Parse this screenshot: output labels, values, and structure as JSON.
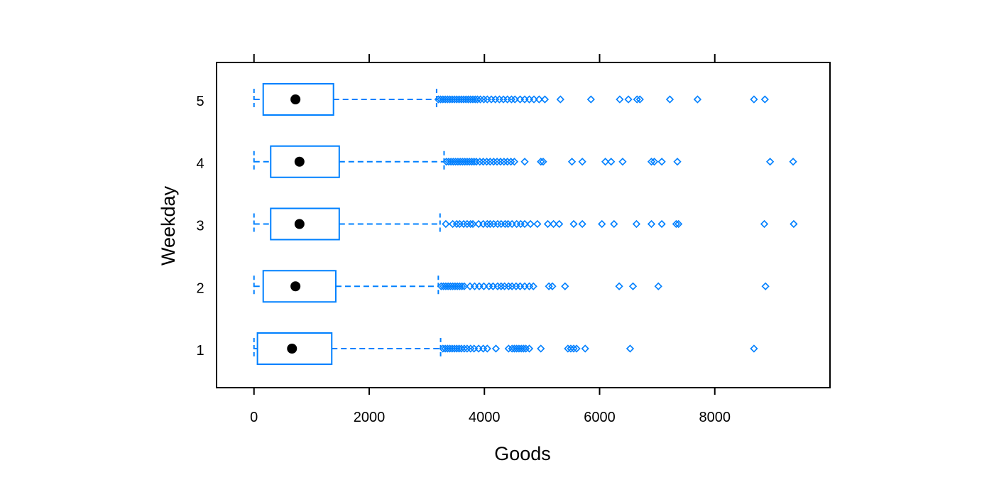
{
  "chart_data": {
    "type": "boxplot",
    "orientation": "horizontal",
    "xlabel": "Goods",
    "ylabel": "Weekday",
    "xlim": [
      -650,
      10000
    ],
    "x_ticks": [
      0,
      2000,
      4000,
      6000,
      8000
    ],
    "grid": false,
    "legend": "none",
    "colors": {
      "box": "#0080FF",
      "median": "#000000",
      "frame": "#000000"
    },
    "series": [
      {
        "category": "1",
        "whisker_low": 0,
        "q1": 60,
        "median": 660,
        "q3": 1350,
        "whisker_high": 3240,
        "outliers": [
          3280,
          3320,
          3360,
          3400,
          3440,
          3480,
          3520,
          3560,
          3600,
          3650,
          3700,
          3760,
          3820,
          3900,
          3980,
          4050,
          4200,
          4420,
          4480,
          4520,
          4560,
          4600,
          4640,
          4680,
          4720,
          4780,
          4980,
          5450,
          5500,
          5550,
          5600,
          5750,
          6530,
          8680
        ]
      },
      {
        "category": "2",
        "whisker_low": 0,
        "q1": 160,
        "median": 720,
        "q3": 1420,
        "whisker_high": 3200,
        "outliers": [
          3250,
          3290,
          3330,
          3370,
          3410,
          3450,
          3490,
          3530,
          3570,
          3610,
          3650,
          3750,
          3830,
          3910,
          3990,
          4080,
          4150,
          4230,
          4290,
          4350,
          4420,
          4480,
          4550,
          4620,
          4700,
          4780,
          4850,
          5120,
          5180,
          5400,
          6340,
          6580,
          7020,
          8880
        ]
      },
      {
        "category": "3",
        "whisker_low": 0,
        "q1": 290,
        "median": 790,
        "q3": 1480,
        "whisker_high": 3230,
        "outliers": [
          3330,
          3450,
          3520,
          3570,
          3640,
          3700,
          3760,
          3800,
          3900,
          3980,
          4050,
          4100,
          4160,
          4230,
          4290,
          4360,
          4410,
          4480,
          4560,
          4630,
          4700,
          4800,
          4920,
          5100,
          5200,
          5300,
          5550,
          5700,
          6040,
          6250,
          6640,
          6900,
          7080,
          7330,
          7370,
          8860,
          9370
        ]
      },
      {
        "category": "4",
        "whisker_low": 0,
        "q1": 290,
        "median": 790,
        "q3": 1480,
        "whisker_high": 3300,
        "outliers": [
          3340,
          3380,
          3420,
          3460,
          3500,
          3540,
          3580,
          3620,
          3660,
          3700,
          3740,
          3780,
          3820,
          3860,
          3920,
          3980,
          4040,
          4100,
          4160,
          4220,
          4280,
          4340,
          4400,
          4460,
          4520,
          4700,
          4980,
          5020,
          5520,
          5700,
          6100,
          6200,
          6400,
          6900,
          6950,
          7080,
          7350,
          8960,
          9360
        ]
      },
      {
        "category": "5",
        "whisker_low": 0,
        "q1": 160,
        "median": 720,
        "q3": 1380,
        "whisker_high": 3170,
        "outliers": [
          3200,
          3240,
          3280,
          3320,
          3360,
          3400,
          3440,
          3480,
          3520,
          3560,
          3600,
          3640,
          3680,
          3720,
          3760,
          3800,
          3840,
          3880,
          3930,
          3990,
          4050,
          4120,
          4190,
          4260,
          4330,
          4400,
          4470,
          4530,
          4620,
          4700,
          4780,
          4860,
          4950,
          5050,
          5320,
          5850,
          6350,
          6500,
          6650,
          6700,
          7220,
          7700,
          8680,
          8870
        ]
      }
    ]
  }
}
